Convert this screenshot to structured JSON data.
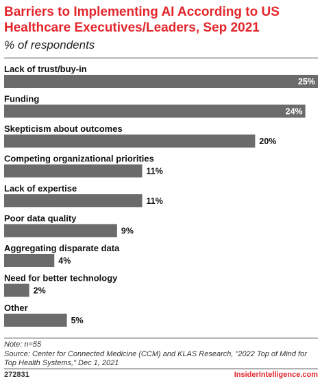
{
  "header": {
    "title": "Barriers to Implementing AI According to US Healthcare Executives/Leaders, Sep 2021",
    "subtitle": "% of respondents"
  },
  "chart_data": {
    "type": "bar",
    "orientation": "horizontal",
    "categories": [
      "Lack of trust/buy-in",
      "Funding",
      "Skepticism about outcomes",
      "Competing organizational priorities",
      "Lack of expertise",
      "Poor data quality",
      "Aggregating disparate data",
      "Need for better technology",
      "Other"
    ],
    "values": [
      25,
      24,
      20,
      11,
      11,
      9,
      4,
      2,
      5
    ],
    "value_labels": [
      "25%",
      "24%",
      "20%",
      "11%",
      "11%",
      "9%",
      "4%",
      "2%",
      "5%"
    ],
    "xlim": [
      0,
      25
    ],
    "grid": false,
    "legend": "none",
    "bar_color": "#6b6b6b",
    "title": "Barriers to Implementing AI According to US Healthcare Executives/Leaders, Sep 2021",
    "subtitle": "% of respondents",
    "xlabel": "",
    "ylabel": ""
  },
  "footer": {
    "note": "Note: n=55",
    "source": "Source: Center for Connected Medicine (CCM) and KLAS Research, \"2022 Top of Mind for Top Health Systems,\" Dec 1, 2021",
    "chart_id": "272831",
    "brand": "InsiderIntelligence.com"
  },
  "colors": {
    "accent": "#e3262b",
    "bar": "#6b6b6b",
    "text": "#222222"
  }
}
